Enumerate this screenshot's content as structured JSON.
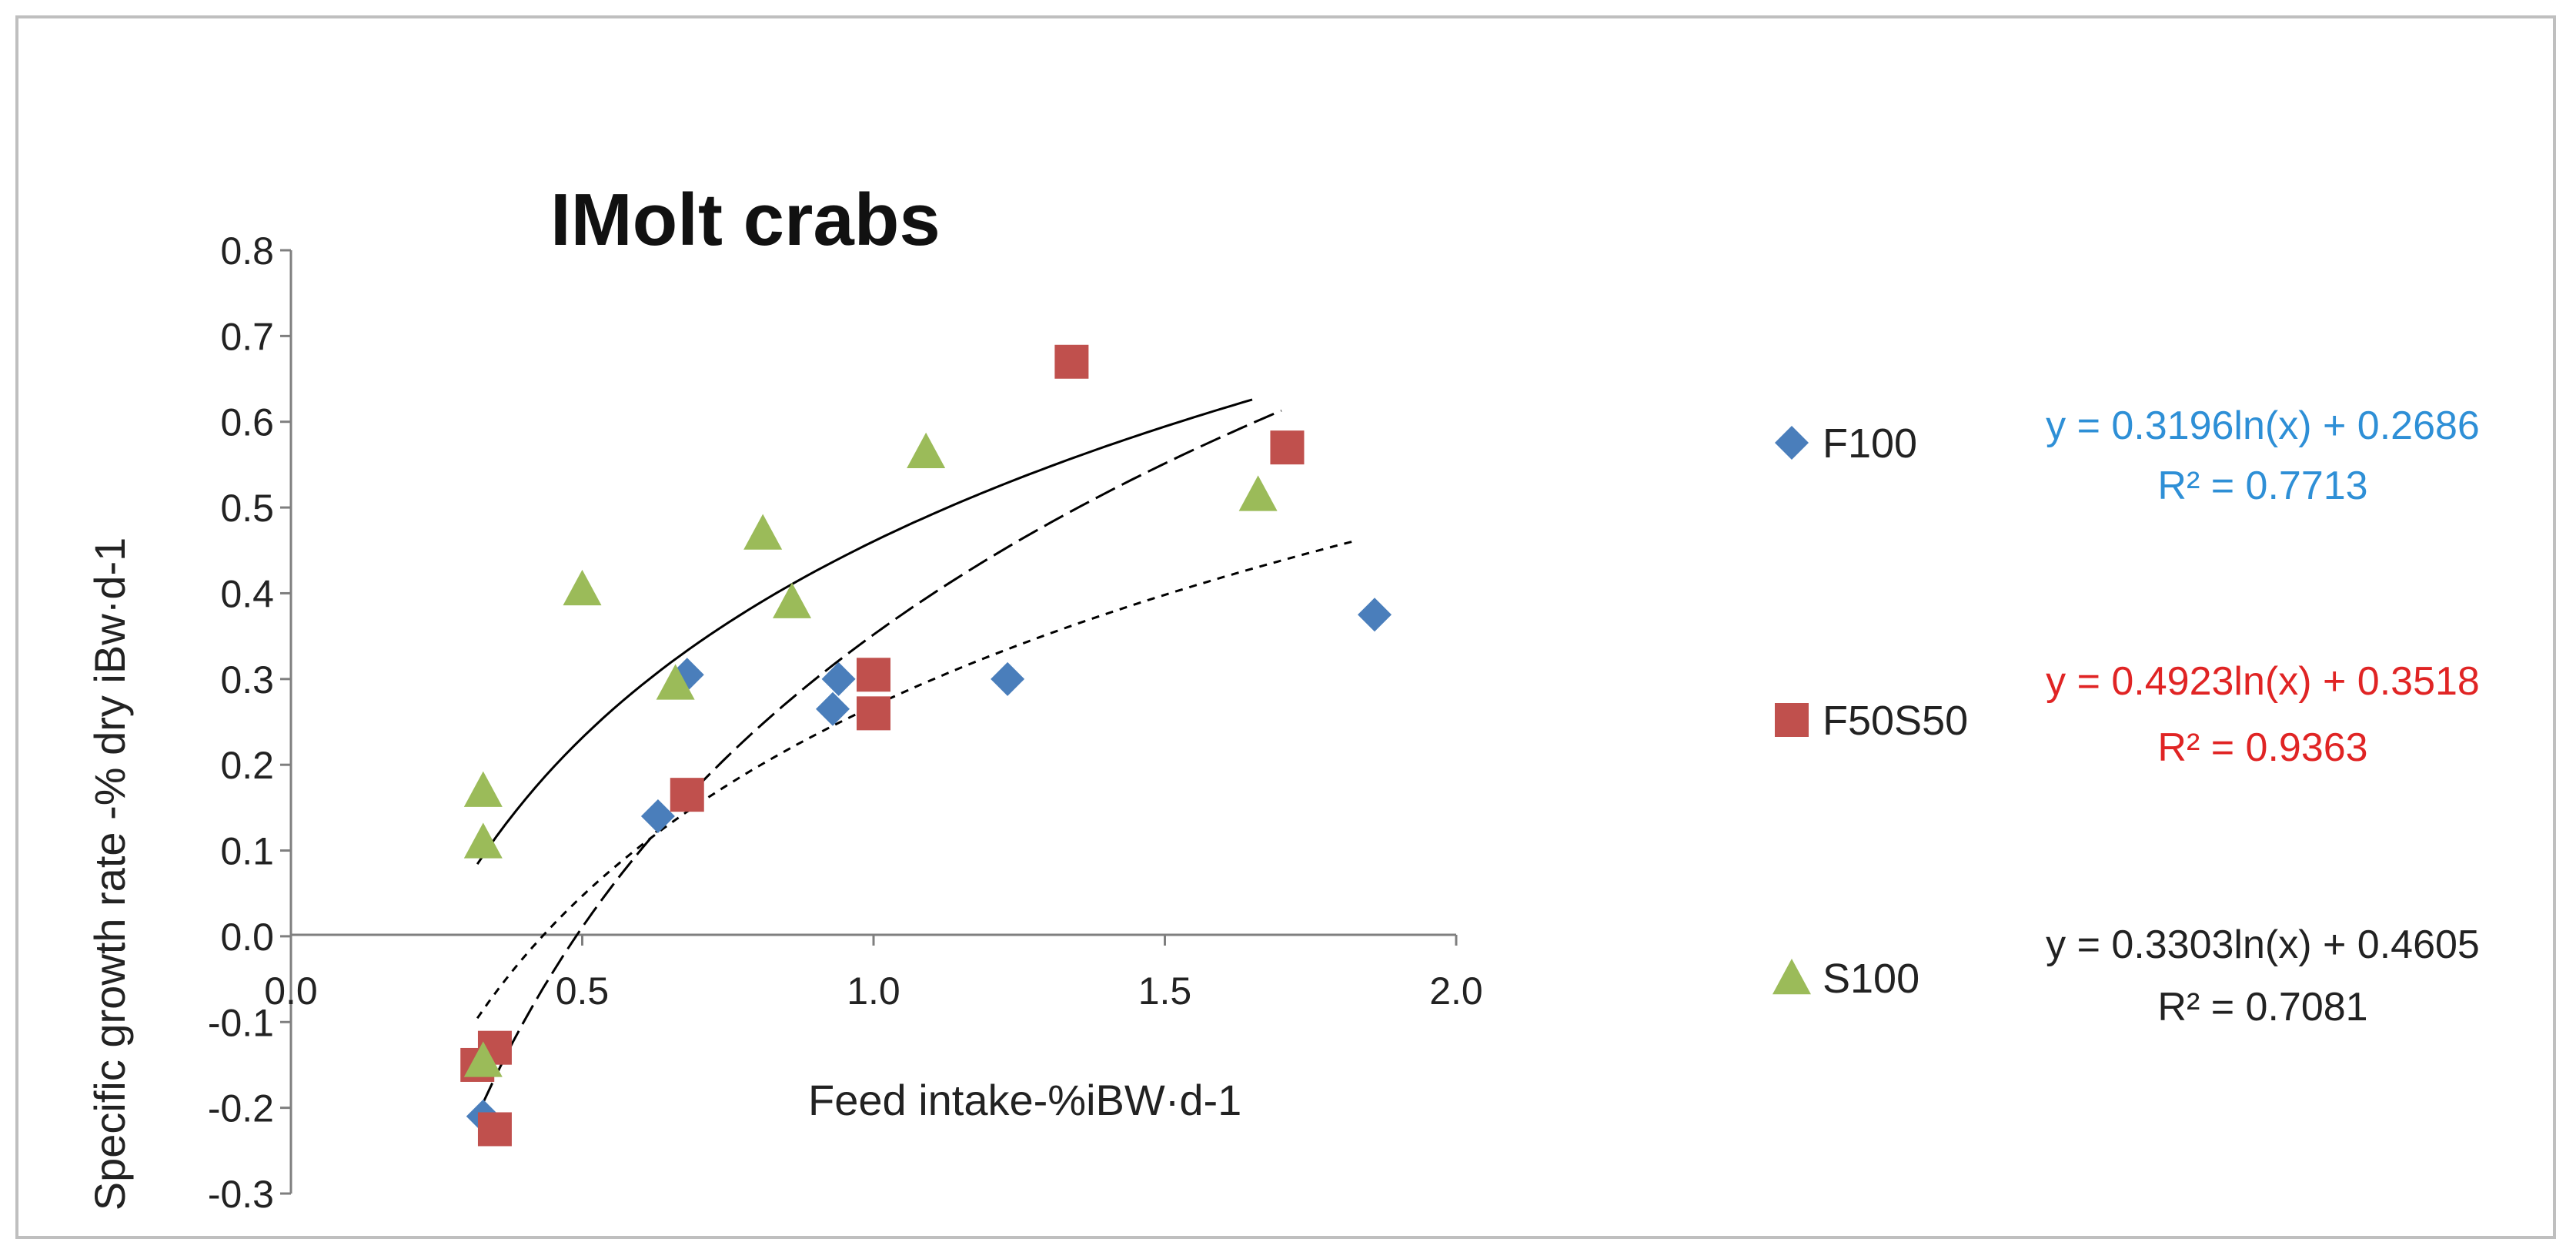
{
  "chart_data": {
    "type": "scatter",
    "title": "IMolt crabs",
    "xlabel": "Feed intake-%iBW·d-1",
    "ylabel": "Specific growth rate -% dry iBw·d-1",
    "xlim": [
      0.0,
      2.0
    ],
    "ylim": [
      -0.3,
      0.8
    ],
    "x_ticks": [
      "0.0",
      "0.5",
      "1.0",
      "1.5",
      "2.0"
    ],
    "y_ticks": [
      "0.8",
      "0.7",
      "0.6",
      "0.5",
      "0.4",
      "0.3",
      "0.2",
      "0.1",
      "0.0",
      "-0.1",
      "-0.2",
      "-0.3"
    ],
    "grid": false,
    "legend_position": "right",
    "series": [
      {
        "name": "F100",
        "marker": "diamond",
        "color": "#4a7ebb",
        "points": [
          [
            0.33,
            -0.21
          ],
          [
            0.63,
            0.14
          ],
          [
            0.68,
            0.305
          ],
          [
            0.93,
            0.265
          ],
          [
            0.94,
            0.3
          ],
          [
            1.23,
            0.3
          ],
          [
            1.86,
            0.375
          ]
        ],
        "trendline": {
          "a": 0.3196,
          "b": 0.2686,
          "x_range": [
            0.32,
            1.83
          ],
          "dash": "10 9"
        },
        "equation": "y = 0.3196ln(x) + 0.2686",
        "r2": "R² = 0.7713",
        "equation_color": "#2e8fd6"
      },
      {
        "name": "F50S50",
        "marker": "square",
        "color": "#c0504d",
        "points": [
          [
            0.32,
            -0.15
          ],
          [
            0.35,
            -0.13
          ],
          [
            0.35,
            -0.225
          ],
          [
            0.68,
            0.165
          ],
          [
            1.0,
            0.305
          ],
          [
            1.0,
            0.26
          ],
          [
            1.34,
            0.67
          ],
          [
            1.71,
            0.57
          ]
        ],
        "trendline": {
          "a": 0.4923,
          "b": 0.3518,
          "x_range": [
            0.33,
            1.7
          ],
          "dash": "28 10"
        },
        "equation": "y = 0.4923ln(x) + 0.3518",
        "r2": "R² = 0.9363",
        "equation_color": "#e02424"
      },
      {
        "name": "S100",
        "marker": "triangle",
        "color": "#9bbb59",
        "points": [
          [
            0.33,
            0.17
          ],
          [
            0.33,
            0.11
          ],
          [
            0.33,
            -0.145
          ],
          [
            0.5,
            0.405
          ],
          [
            0.66,
            0.295
          ],
          [
            0.81,
            0.47
          ],
          [
            0.86,
            0.39
          ],
          [
            1.09,
            0.565
          ],
          [
            1.66,
            0.515
          ]
        ],
        "trendline": {
          "a": 0.3303,
          "b": 0.4605,
          "x_range": [
            0.32,
            1.65
          ],
          "dash": ""
        },
        "equation": "y = 0.3303ln(x) + 0.4605",
        "r2": "R² = 0.7081",
        "equation_color": "#222222"
      }
    ]
  }
}
